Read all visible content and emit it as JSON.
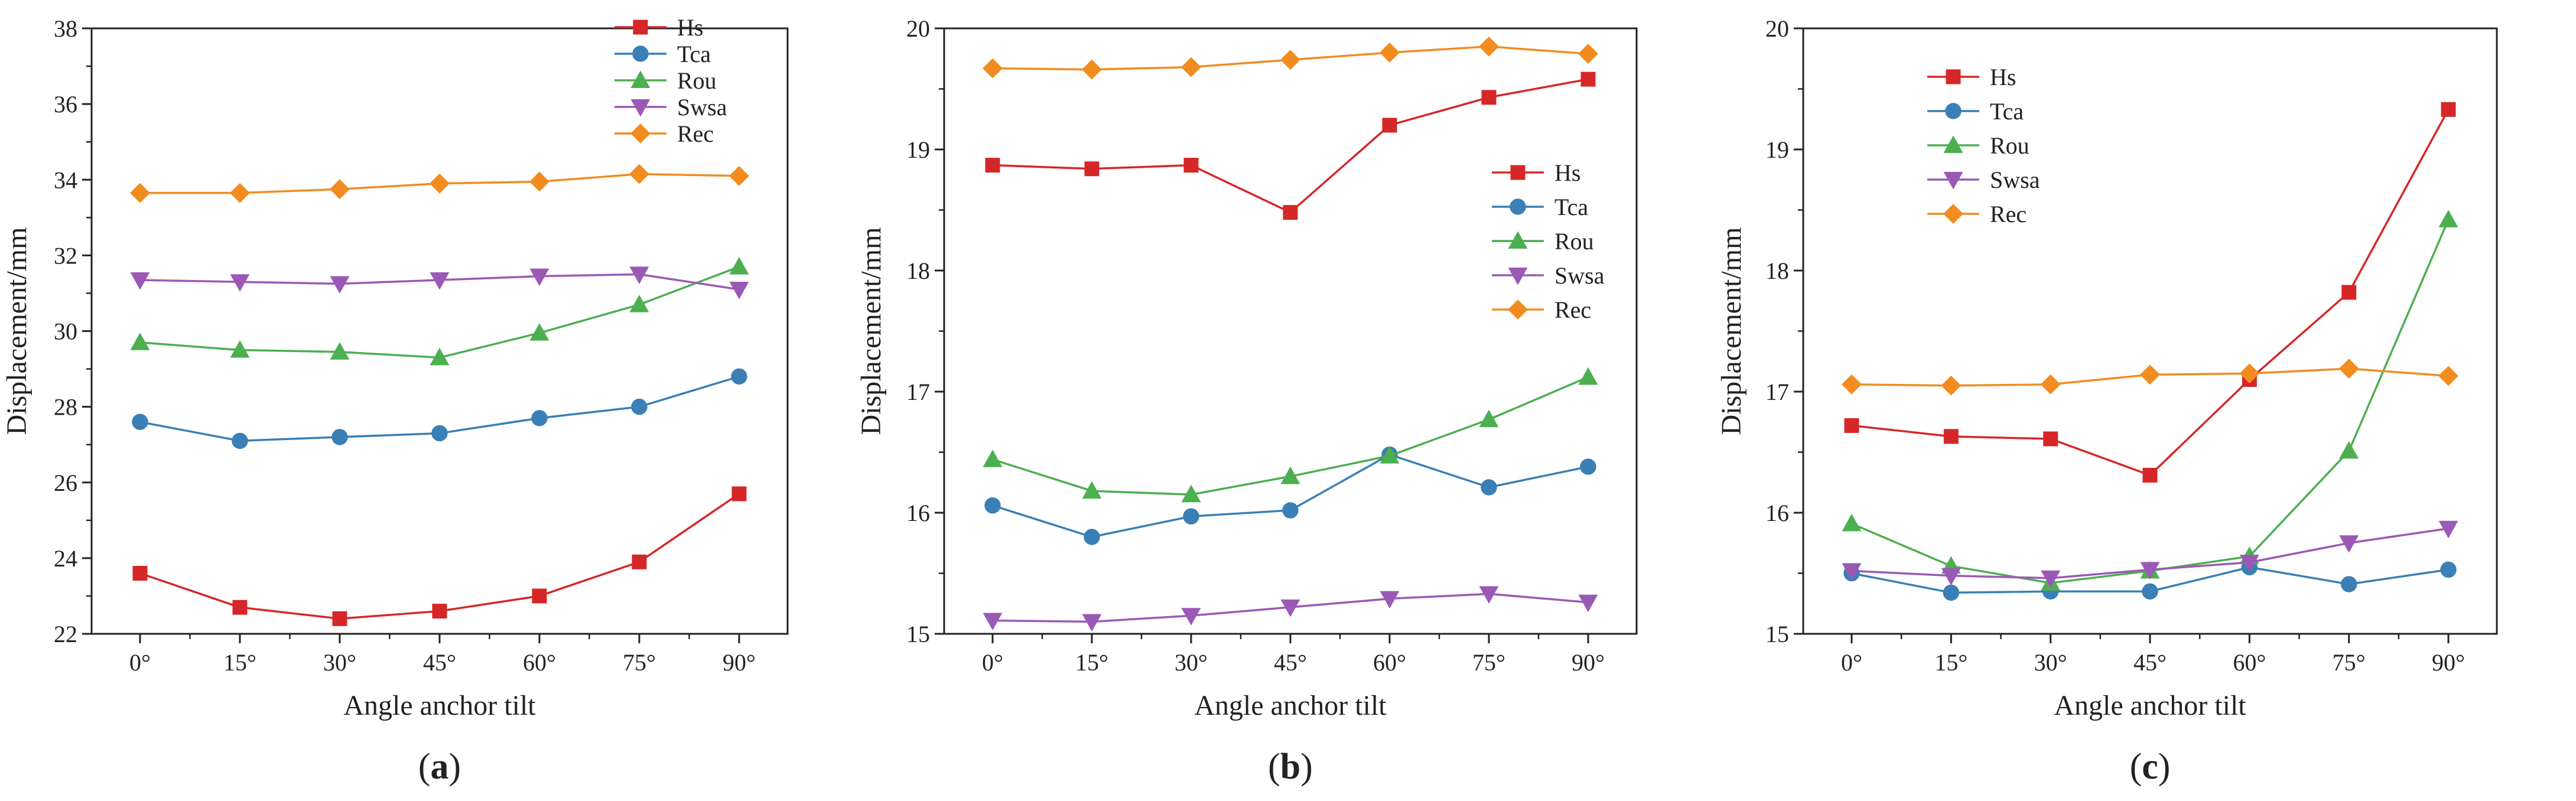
{
  "figure": {
    "panel_labels": [
      "a",
      "b",
      "c"
    ]
  },
  "chart_data": [
    {
      "type": "line",
      "panel": "(a)",
      "panel_letter": "a",
      "title": "",
      "xlabel": "Angle anchor tilt",
      "ylabel": "Displacement/mm",
      "categories": [
        "0°",
        "15°",
        "30°",
        "45°",
        "60°",
        "75°",
        "90°"
      ],
      "ylim": [
        22,
        38
      ],
      "yticks": [
        22,
        24,
        26,
        28,
        30,
        32,
        34,
        36,
        38
      ],
      "yminor": 1,
      "legend_position": "top-right",
      "series": [
        {
          "name": "Hs",
          "color": "#d62728",
          "marker": "square",
          "values": [
            23.6,
            22.7,
            22.4,
            22.6,
            23.0,
            23.9,
            25.7
          ]
        },
        {
          "name": "Tca",
          "color": "#3a7fb5",
          "marker": "circle",
          "values": [
            27.6,
            27.1,
            27.2,
            27.3,
            27.7,
            28.0,
            28.8
          ]
        },
        {
          "name": "Rou",
          "color": "#4caf50",
          "marker": "triangle-up",
          "values": [
            29.7,
            29.5,
            29.45,
            29.3,
            29.95,
            30.7,
            31.7
          ]
        },
        {
          "name": "Swsa",
          "color": "#9b59b6",
          "marker": "triangle-down",
          "values": [
            31.35,
            31.3,
            31.25,
            31.35,
            31.45,
            31.5,
            31.1
          ]
        },
        {
          "name": "Rec",
          "color": "#f28c1e",
          "marker": "diamond",
          "values": [
            33.65,
            33.65,
            33.75,
            33.9,
            33.95,
            34.15,
            34.1
          ]
        }
      ]
    },
    {
      "type": "line",
      "panel": "(b)",
      "panel_letter": "b",
      "title": "",
      "xlabel": "Angle anchor tilt",
      "ylabel": "Displacement/mm",
      "categories": [
        "0°",
        "15°",
        "30°",
        "45°",
        "60°",
        "75°",
        "90°"
      ],
      "ylim": [
        15,
        20
      ],
      "yticks": [
        15,
        16,
        17,
        18,
        19,
        20
      ],
      "yminor": 0.5,
      "legend_position": "center-right",
      "series": [
        {
          "name": "Hs",
          "color": "#d62728",
          "marker": "square",
          "values": [
            18.87,
            18.84,
            18.87,
            18.48,
            19.2,
            19.43,
            19.58
          ]
        },
        {
          "name": "Tca",
          "color": "#3a7fb5",
          "marker": "circle",
          "values": [
            16.06,
            15.8,
            15.97,
            16.02,
            16.48,
            16.21,
            16.38
          ]
        },
        {
          "name": "Rou",
          "color": "#4caf50",
          "marker": "triangle-up",
          "values": [
            16.44,
            16.18,
            16.15,
            16.3,
            16.47,
            16.77,
            17.12
          ]
        },
        {
          "name": "Swsa",
          "color": "#9b59b6",
          "marker": "triangle-down",
          "values": [
            15.11,
            15.1,
            15.15,
            15.22,
            15.29,
            15.33,
            15.26
          ]
        },
        {
          "name": "Rec",
          "color": "#f28c1e",
          "marker": "diamond",
          "values": [
            19.67,
            19.66,
            19.68,
            19.74,
            19.8,
            19.85,
            19.79
          ]
        }
      ]
    },
    {
      "type": "line",
      "panel": "(c)",
      "panel_letter": "c",
      "title": "",
      "xlabel": "Angle anchor tilt",
      "ylabel": "Displacement/mm",
      "categories": [
        "0°",
        "15°",
        "30°",
        "45°",
        "60°",
        "75°",
        "90°"
      ],
      "ylim": [
        15,
        20
      ],
      "yticks": [
        15,
        16,
        17,
        18,
        19,
        20
      ],
      "yminor": 0.5,
      "legend_position": "top-left",
      "series": [
        {
          "name": "Hs",
          "color": "#d62728",
          "marker": "square",
          "values": [
            16.72,
            16.63,
            16.61,
            16.31,
            17.1,
            17.82,
            19.33
          ]
        },
        {
          "name": "Tca",
          "color": "#3a7fb5",
          "marker": "circle",
          "values": [
            15.5,
            15.34,
            15.35,
            15.35,
            15.55,
            15.41,
            15.53
          ]
        },
        {
          "name": "Rou",
          "color": "#4caf50",
          "marker": "triangle-up",
          "values": [
            15.91,
            15.56,
            15.42,
            15.52,
            15.64,
            16.51,
            18.42
          ]
        },
        {
          "name": "Swsa",
          "color": "#9b59b6",
          "marker": "triangle-down",
          "values": [
            15.52,
            15.48,
            15.46,
            15.53,
            15.59,
            15.75,
            15.87
          ]
        },
        {
          "name": "Rec",
          "color": "#f28c1e",
          "marker": "diamond",
          "values": [
            17.06,
            17.05,
            17.06,
            17.14,
            17.15,
            17.19,
            17.13
          ]
        }
      ]
    }
  ]
}
